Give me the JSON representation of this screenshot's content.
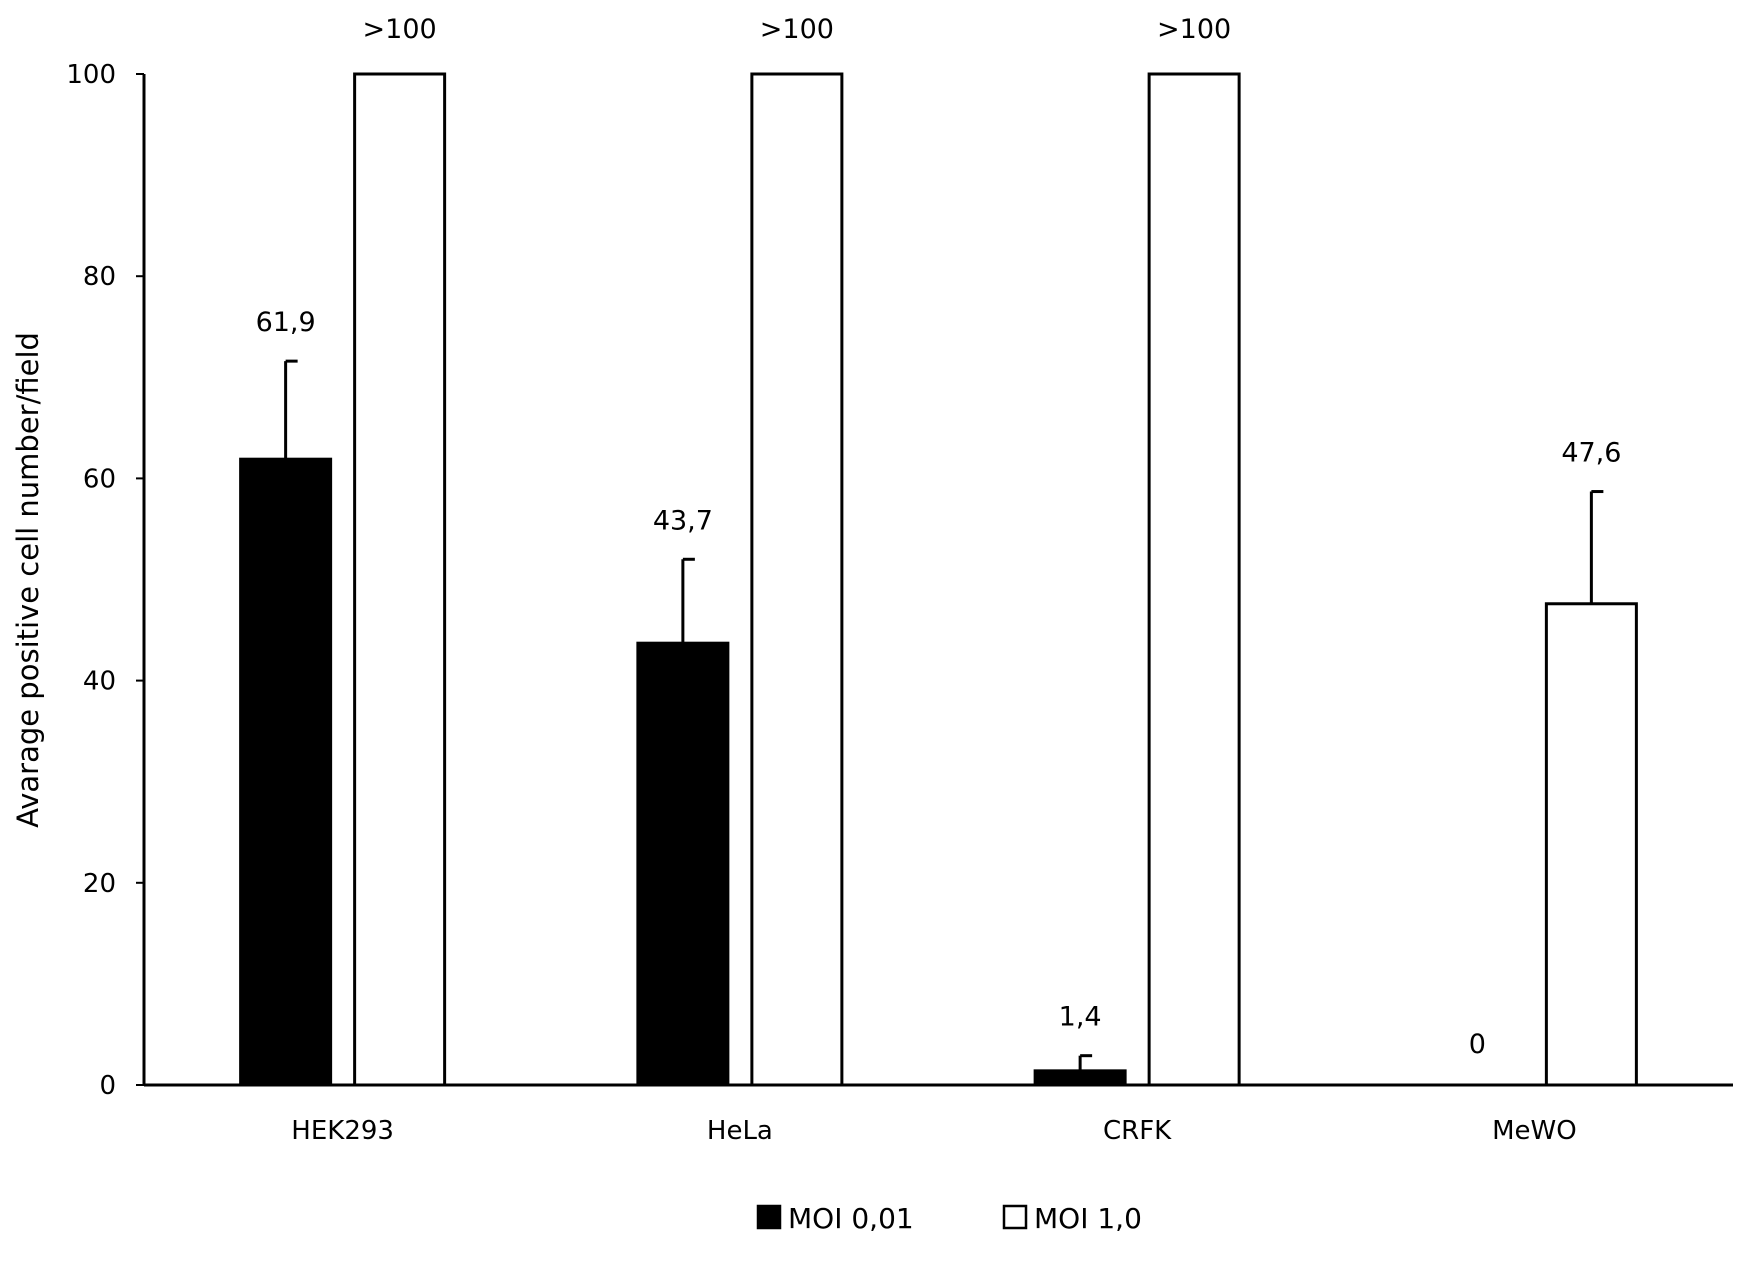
{
  "chart_data": {
    "type": "bar",
    "title": "",
    "xlabel": "",
    "ylabel": "Avarage positive cell number/field",
    "ylim": [
      0,
      100
    ],
    "yticks": [
      0,
      20,
      40,
      60,
      80,
      100
    ],
    "grid": false,
    "legend_position": "bottom",
    "categories": [
      "HEK293",
      "HeLa",
      "CRFK",
      "MeWO"
    ],
    "series": [
      {
        "name": "MOI 0,01",
        "color": "#000000",
        "values": [
          61.9,
          43.7,
          1.4,
          0
        ],
        "error": [
          9.7,
          8.3,
          1.5,
          null
        ],
        "labels": [
          "61,9",
          "43,7",
          "1,4",
          "0"
        ]
      },
      {
        "name": "MOI 1,0",
        "color": "#ffffff",
        "values": [
          100,
          100,
          100,
          47.6
        ],
        "error": [
          null,
          null,
          null,
          11.1
        ],
        "labels": [
          ">100",
          ">100",
          ">100",
          "47,6"
        ]
      }
    ]
  }
}
